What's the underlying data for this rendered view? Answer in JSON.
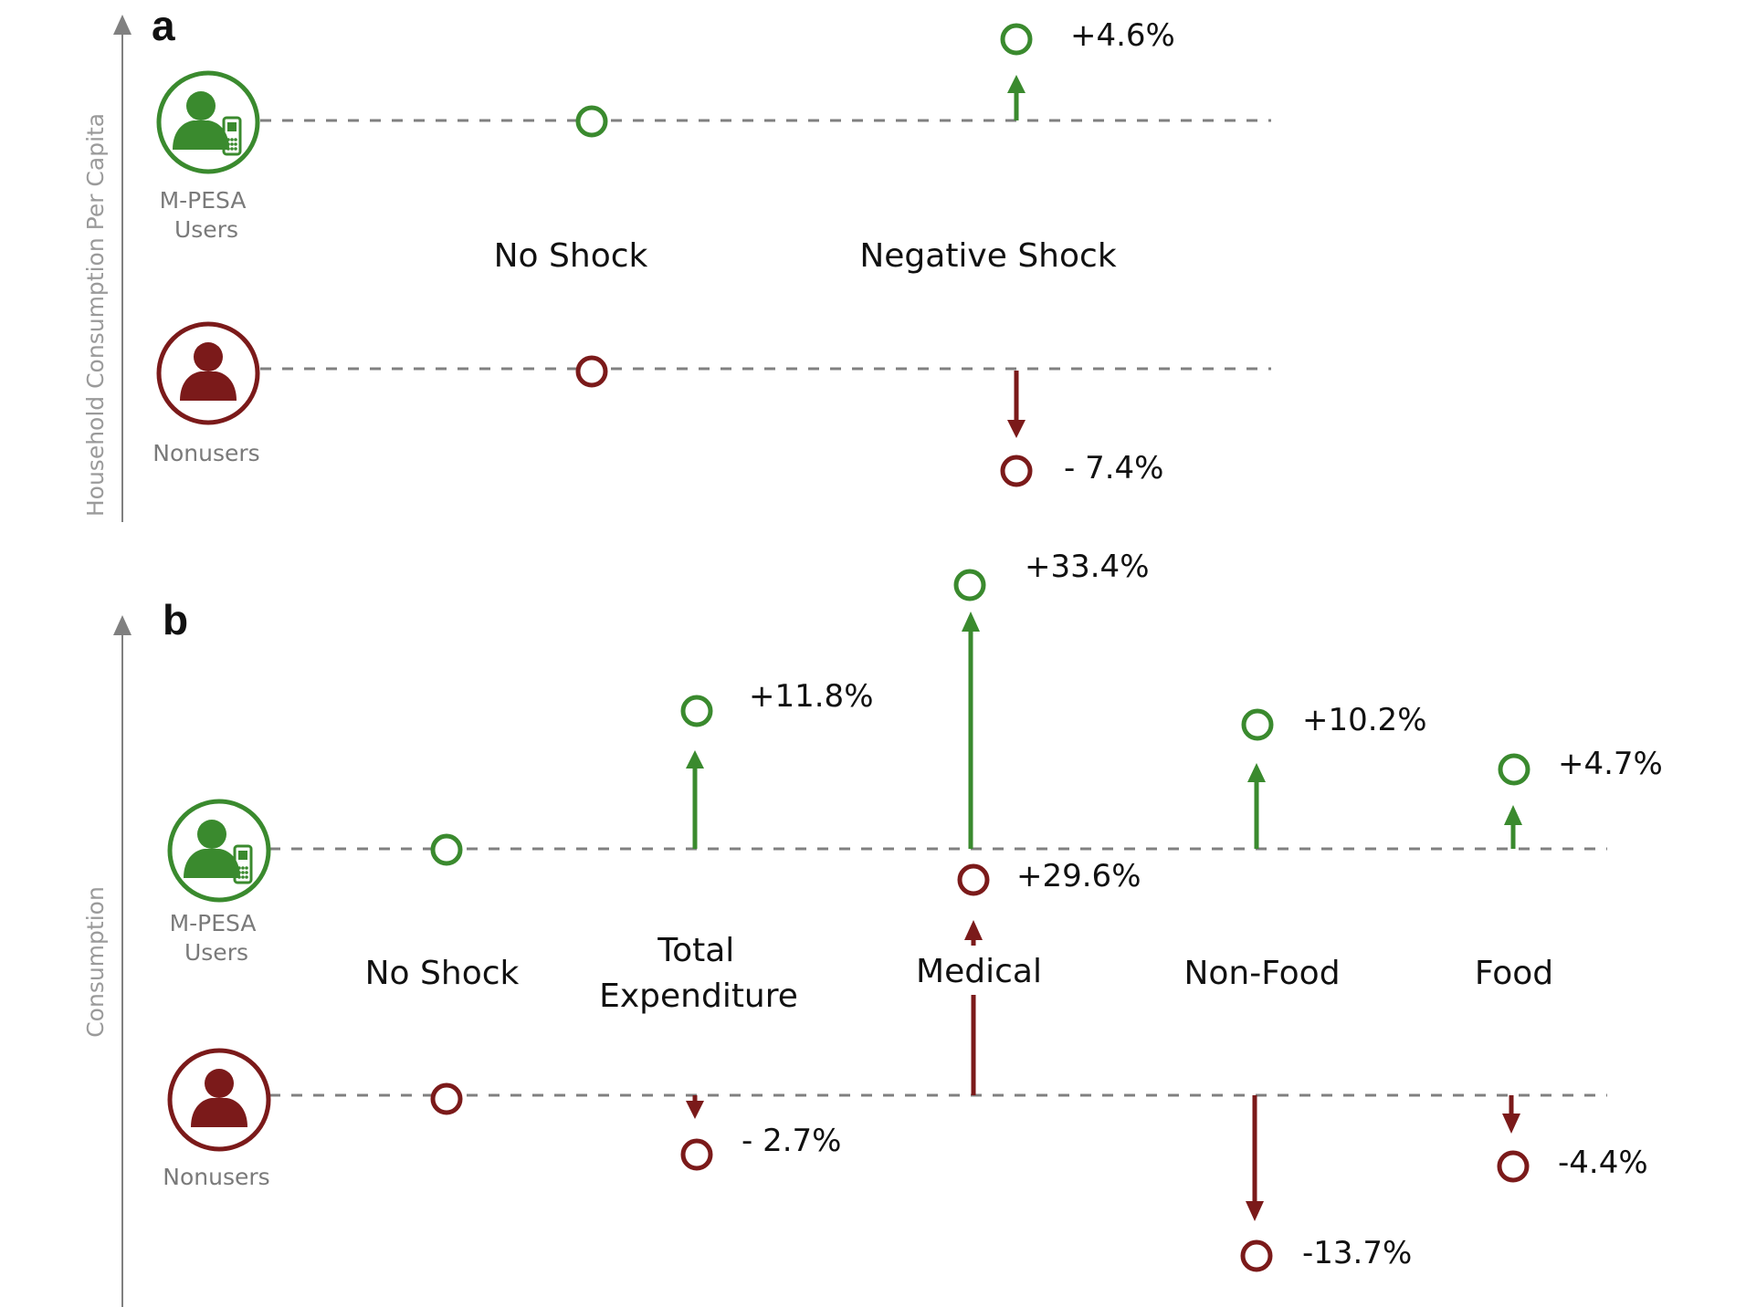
{
  "colors": {
    "users": "#3a8a2e",
    "nonusers": "#7b1a1a",
    "baseline": "#808080",
    "axis": "#808080"
  },
  "icons": {
    "users": "person-with-phone-icon",
    "nonusers": "person-icon"
  },
  "panel_a": {
    "letter": "a",
    "axis_title": "Household Consumption Per Capita",
    "users_label": [
      "M-PESA",
      "Users"
    ],
    "nonusers_label": "Nonusers",
    "categories": [
      "No Shock",
      "Negative Shock"
    ]
  },
  "panel_b": {
    "letter": "b",
    "axis_title": "Consumption",
    "users_label": [
      "M-PESA",
      "Users"
    ],
    "nonusers_label": "Nonusers",
    "categories": [
      "No Shock",
      "Total Expenditure",
      "Medical",
      "Non-Food",
      "Food"
    ]
  },
  "chart_data": [
    {
      "type": "scatter",
      "panel": "a",
      "ylabel": "Household Consumption Per Capita",
      "categories": [
        "No Shock",
        "Negative Shock"
      ],
      "series": [
        {
          "name": "M-PESA Users",
          "change_pct": [
            0,
            4.6
          ],
          "labels": [
            "",
            "+4.6%"
          ]
        },
        {
          "name": "Nonusers",
          "change_pct": [
            0,
            -7.4
          ],
          "labels": [
            "",
            "- 7.4%"
          ]
        }
      ]
    },
    {
      "type": "scatter",
      "panel": "b",
      "ylabel": "Consumption",
      "categories": [
        "No Shock",
        "Total Expenditure",
        "Medical",
        "Non-Food",
        "Food"
      ],
      "series": [
        {
          "name": "M-PESA Users",
          "change_pct": [
            0,
            11.8,
            33.4,
            10.2,
            4.7
          ],
          "labels": [
            "",
            "+11.8%",
            "+33.4%",
            "+10.2%",
            "+4.7%"
          ]
        },
        {
          "name": "Nonusers",
          "change_pct": [
            0,
            -2.7,
            29.6,
            -13.7,
            -4.4
          ],
          "labels": [
            "",
            "- 2.7%",
            "+29.6%",
            "-13.7%",
            "-4.4%"
          ]
        }
      ]
    }
  ]
}
